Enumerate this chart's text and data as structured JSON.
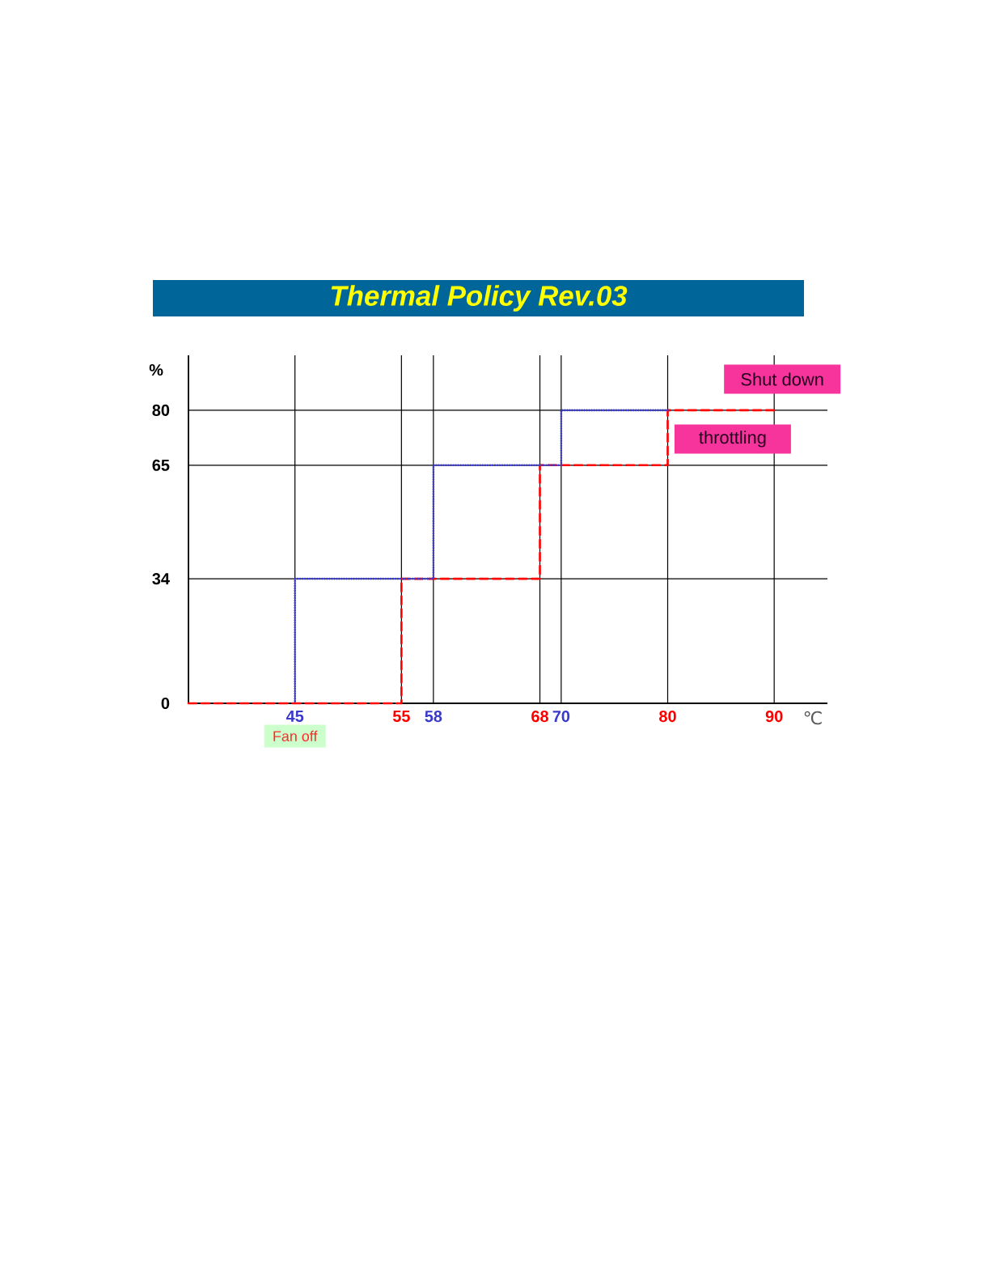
{
  "chart_data": {
    "type": "line",
    "title": "Thermal Policy Rev.03",
    "xlabel": "℃",
    "ylabel": "%",
    "xlim": [
      35,
      95
    ],
    "ylim": [
      0,
      95
    ],
    "xticks": [
      45,
      55,
      58,
      68,
      70,
      80,
      90
    ],
    "yticks": [
      0,
      34,
      65,
      80
    ],
    "grid": true,
    "series": [
      {
        "color": "#ff0000",
        "line_style": "dashed",
        "x": [
          35,
          55,
          55,
          68,
          68,
          80,
          80,
          90
        ],
        "values": [
          0,
          0,
          34,
          34,
          65,
          65,
          80,
          80
        ]
      },
      {
        "color": "#3a3acc",
        "line_style": "dotted",
        "x": [
          80,
          70,
          70,
          58,
          58,
          45,
          45
        ],
        "values": [
          80,
          80,
          65,
          65,
          34,
          34,
          0
        ]
      }
    ],
    "annotations": [
      {
        "text": "Shut down",
        "x": 90,
        "y": 80
      },
      {
        "text": "throttling",
        "x": 80,
        "y": 65
      },
      {
        "text": "Fan off",
        "x": 45,
        "y": 0
      }
    ]
  }
}
